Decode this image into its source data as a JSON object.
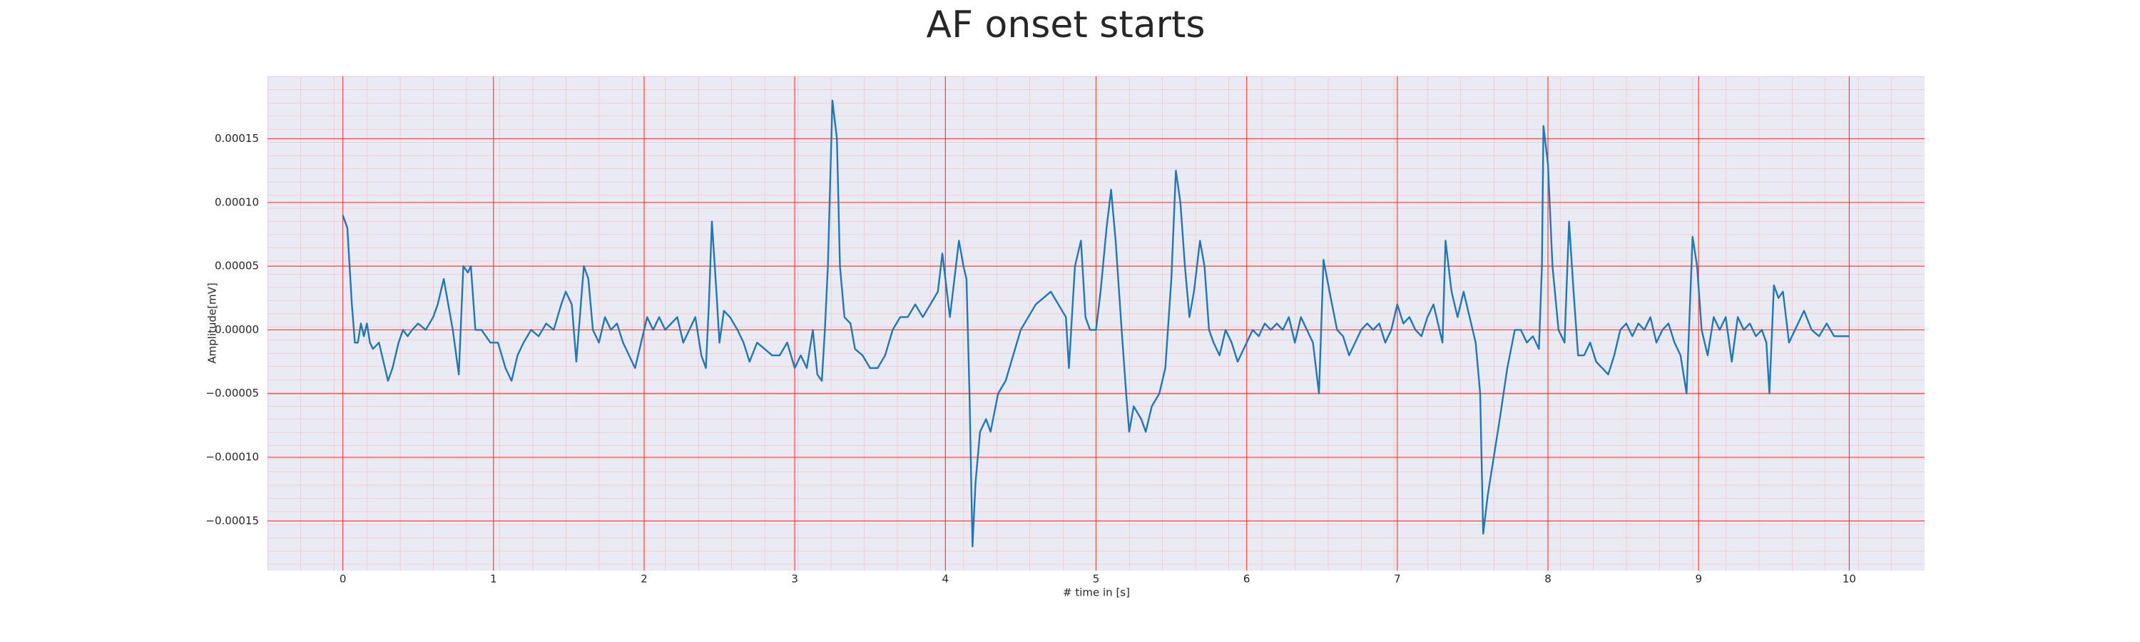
{
  "chart_data": {
    "type": "line",
    "title": "AF onset starts",
    "x_label": "# time in [s]",
    "y_label": "Amplitude[mV]",
    "xlim": [
      -0.5,
      10.5
    ],
    "ylim": [
      -0.000189,
      0.000199
    ],
    "xticks": [
      0,
      1,
      2,
      3,
      4,
      5,
      6,
      7,
      8,
      9,
      10
    ],
    "yticks": [
      {
        "value": -0.00015,
        "label": "−0.00015"
      },
      {
        "value": -0.0001,
        "label": "−0.00010"
      },
      {
        "value": -5e-05,
        "label": "−0.00005"
      },
      {
        "value": 0,
        "label": "0.00000"
      },
      {
        "value": 5e-05,
        "label": "0.00005"
      },
      {
        "value": 0.0001,
        "label": "0.00010"
      },
      {
        "value": 0.00015,
        "label": "0.00015"
      }
    ],
    "grid": true,
    "grid_color": "#ff3b3b",
    "background": "#eaeaf2",
    "x": [
      0,
      0.03,
      0.06,
      0.08,
      0.1,
      0.12,
      0.14,
      0.16,
      0.18,
      0.2,
      0.24,
      0.28,
      0.3,
      0.33,
      0.37,
      0.4,
      0.43,
      0.46,
      0.5,
      0.55,
      0.6,
      0.63,
      0.67,
      0.7,
      0.73,
      0.77,
      0.8,
      0.83,
      0.85,
      0.88,
      0.92,
      0.98,
      1.03,
      1.08,
      1.12,
      1.16,
      1.2,
      1.25,
      1.3,
      1.35,
      1.4,
      1.45,
      1.48,
      1.52,
      1.55,
      1.6,
      1.63,
      1.66,
      1.7,
      1.74,
      1.78,
      1.82,
      1.86,
      1.9,
      1.94,
      1.98,
      2.02,
      2.06,
      2.1,
      2.14,
      2.18,
      2.22,
      2.26,
      2.3,
      2.34,
      2.38,
      2.41,
      2.43,
      2.45,
      2.48,
      2.5,
      2.53,
      2.57,
      2.62,
      2.66,
      2.7,
      2.75,
      2.8,
      2.85,
      2.9,
      2.95,
      3,
      3.04,
      3.08,
      3.12,
      3.15,
      3.18,
      3.2,
      3.22,
      3.25,
      3.28,
      3.3,
      3.33,
      3.37,
      3.4,
      3.45,
      3.5,
      3.55,
      3.6,
      3.65,
      3.7,
      3.75,
      3.8,
      3.85,
      3.9,
      3.95,
      3.98,
      4,
      4.03,
      4.06,
      4.09,
      4.12,
      4.14,
      4.16,
      4.18,
      4.2,
      4.23,
      4.27,
      4.3,
      4.35,
      4.4,
      4.45,
      4.5,
      4.55,
      4.6,
      4.65,
      4.7,
      4.75,
      4.8,
      4.82,
      4.86,
      4.9,
      4.93,
      4.96,
      5,
      5.03,
      5.07,
      5.1,
      5.13,
      5.17,
      5.2,
      5.22,
      5.25,
      5.3,
      5.33,
      5.37,
      5.42,
      5.46,
      5.5,
      5.53,
      5.56,
      5.59,
      5.62,
      5.65,
      5.69,
      5.72,
      5.75,
      5.78,
      5.82,
      5.86,
      5.9,
      5.94,
      6,
      6.04,
      6.08,
      6.12,
      6.16,
      6.2,
      6.24,
      6.28,
      6.32,
      6.36,
      6.4,
      6.44,
      6.48,
      6.51,
      6.55,
      6.6,
      6.64,
      6.68,
      6.72,
      6.76,
      6.8,
      6.84,
      6.88,
      6.92,
      6.96,
      7,
      7.04,
      7.08,
      7.12,
      7.16,
      7.2,
      7.24,
      7.28,
      7.3,
      7.32,
      7.36,
      7.4,
      7.44,
      7.48,
      7.52,
      7.55,
      7.57,
      7.6,
      7.64,
      7.68,
      7.73,
      7.78,
      7.82,
      7.86,
      7.9,
      7.94,
      7.96,
      7.97,
      8,
      8.03,
      8.07,
      8.11,
      8.14,
      8.17,
      8.2,
      8.24,
      8.28,
      8.32,
      8.36,
      8.4,
      8.44,
      8.48,
      8.52,
      8.56,
      8.6,
      8.64,
      8.68,
      8.72,
      8.76,
      8.8,
      8.84,
      8.88,
      8.92,
      8.96,
      8.99,
      9.02,
      9.06,
      9.1,
      9.14,
      9.18,
      9.22,
      9.26,
      9.3,
      9.34,
      9.38,
      9.42,
      9.45,
      9.47,
      9.5,
      9.53,
      9.56,
      9.6,
      9.64,
      9.7,
      9.75,
      9.8,
      9.85,
      9.9,
      10
    ],
    "series": [
      {
        "color": "#1f77b4",
        "values": [
          9e-05,
          8e-05,
          2e-05,
          -1e-05,
          -1e-05,
          5e-06,
          -5e-06,
          5e-06,
          -1e-05,
          -1.5e-05,
          -1e-05,
          -3e-05,
          -4e-05,
          -3e-05,
          -1e-05,
          0,
          -5e-06,
          0,
          5e-06,
          0,
          1e-05,
          2e-05,
          4e-05,
          2e-05,
          0,
          -3.5e-05,
          5e-05,
          4.5e-05,
          5e-05,
          0,
          0,
          -1e-05,
          -1e-05,
          -3e-05,
          -4e-05,
          -2e-05,
          -1e-05,
          0,
          -5e-06,
          5e-06,
          0,
          2e-05,
          3e-05,
          2e-05,
          -2.5e-05,
          5e-05,
          4e-05,
          0,
          -1e-05,
          1e-05,
          0,
          5e-06,
          -1e-05,
          -2e-05,
          -3e-05,
          -1e-05,
          1e-05,
          0,
          1e-05,
          0,
          5e-06,
          1e-05,
          -1e-05,
          0,
          1e-05,
          -2e-05,
          -3e-05,
          2e-05,
          8.5e-05,
          3e-05,
          -1e-05,
          1.5e-05,
          1e-05,
          0,
          -1e-05,
          -2.5e-05,
          -1e-05,
          -1.5e-05,
          -2e-05,
          -2e-05,
          -1e-05,
          -3e-05,
          -2e-05,
          -3e-05,
          0,
          -3.5e-05,
          -4e-05,
          0,
          5e-05,
          0.00018,
          0.00015,
          5e-05,
          1e-05,
          5e-06,
          -1.5e-05,
          -2e-05,
          -3e-05,
          -3e-05,
          -2e-05,
          0,
          1e-05,
          1e-05,
          2e-05,
          1e-05,
          2e-05,
          3e-05,
          6e-05,
          4e-05,
          1e-05,
          4e-05,
          7e-05,
          5e-05,
          4e-05,
          -5e-05,
          -0.00017,
          -0.00012,
          -8e-05,
          -7e-05,
          -8e-05,
          -5e-05,
          -4e-05,
          -2e-05,
          0,
          1e-05,
          2e-05,
          2.5e-05,
          3e-05,
          2e-05,
          1e-05,
          -3e-05,
          5e-05,
          7e-05,
          1e-05,
          0,
          0,
          3e-05,
          8e-05,
          0.00011,
          7e-05,
          0,
          -5e-05,
          -8e-05,
          -6e-05,
          -7e-05,
          -8e-05,
          -6e-05,
          -5e-05,
          -3e-05,
          4e-05,
          0.000125,
          0.0001,
          5e-05,
          1e-05,
          3e-05,
          7e-05,
          5e-05,
          0,
          -1e-05,
          -2e-05,
          0,
          -1e-05,
          -2.5e-05,
          -1e-05,
          0,
          -5e-06,
          5e-06,
          0,
          5e-06,
          0,
          1e-05,
          -1e-05,
          1e-05,
          0,
          -1e-05,
          -5e-05,
          5.5e-05,
          3e-05,
          0,
          -5e-06,
          -2e-05,
          -1e-05,
          0,
          5e-06,
          0,
          5e-06,
          -1e-05,
          0,
          2e-05,
          5e-06,
          1e-05,
          0,
          -5e-06,
          1e-05,
          2e-05,
          0,
          -1e-05,
          7e-05,
          3e-05,
          1e-05,
          3e-05,
          1e-05,
          -1e-05,
          -5e-05,
          -0.00016,
          -0.00013,
          -0.0001,
          -7e-05,
          -3e-05,
          0,
          0,
          -1e-05,
          -5e-06,
          -1.5e-05,
          5e-05,
          0.00016,
          0.00013,
          5e-05,
          0,
          -1e-05,
          8.5e-05,
          3e-05,
          -2e-05,
          -2e-05,
          -1e-05,
          -2.5e-05,
          -3e-05,
          -3.5e-05,
          -2e-05,
          0,
          5e-06,
          -5e-06,
          5e-06,
          0,
          1e-05,
          -1e-05,
          0,
          5e-06,
          -1e-05,
          -2e-05,
          -5e-05,
          7.3e-05,
          5e-05,
          0,
          -2e-05,
          1e-05,
          0,
          1e-05,
          -2.5e-05,
          1e-05,
          0,
          5e-06,
          -5e-06,
          0,
          -1e-05,
          -5e-05,
          3.5e-05,
          2.5e-05,
          3e-05,
          -1e-05,
          0,
          1.5e-05,
          0,
          -5e-06,
          5e-06,
          -5e-06,
          -5e-06
        ]
      }
    ]
  }
}
